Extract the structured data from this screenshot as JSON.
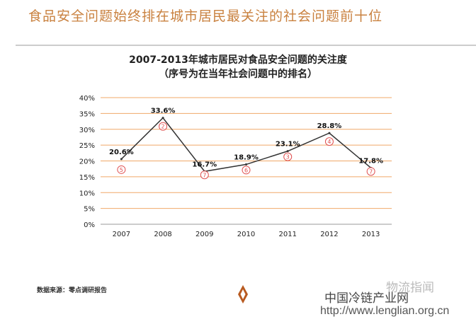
{
  "headline": "食品安全问题始终排在城市居民最关注的社会问题前十位",
  "chart_data": {
    "type": "line",
    "title": "2007-2013年城市居民对食品安全问题的关注度",
    "subtitle": "（序号为在当年社会问题中的排名）",
    "categories": [
      "2007",
      "2008",
      "2009",
      "2010",
      "2011",
      "2012",
      "2013"
    ],
    "values": [
      20.6,
      33.6,
      16.7,
      18.9,
      23.1,
      28.8,
      17.8
    ],
    "data_labels": [
      "20.6%",
      "33.6%",
      "16.7%",
      "18.9%",
      "23.1%",
      "28.8%",
      "17.8%"
    ],
    "ranks": [
      "5",
      "2",
      "7",
      "6",
      "3",
      "4",
      "7"
    ],
    "y_ticks": [
      "0%",
      "5%",
      "10%",
      "15%",
      "20%",
      "25%",
      "30%",
      "35%",
      "40%"
    ],
    "ylim": [
      0,
      40
    ],
    "grid": true,
    "line_color": "#333333",
    "grid_color": "#f0a868",
    "rank_color": "#e05050"
  },
  "source": "数据来源：零点调研报告",
  "watermark": {
    "wechat": "物流指闻",
    "site_name": "中国冷链产业网",
    "url": "http://www.lenglian.org.cn"
  }
}
